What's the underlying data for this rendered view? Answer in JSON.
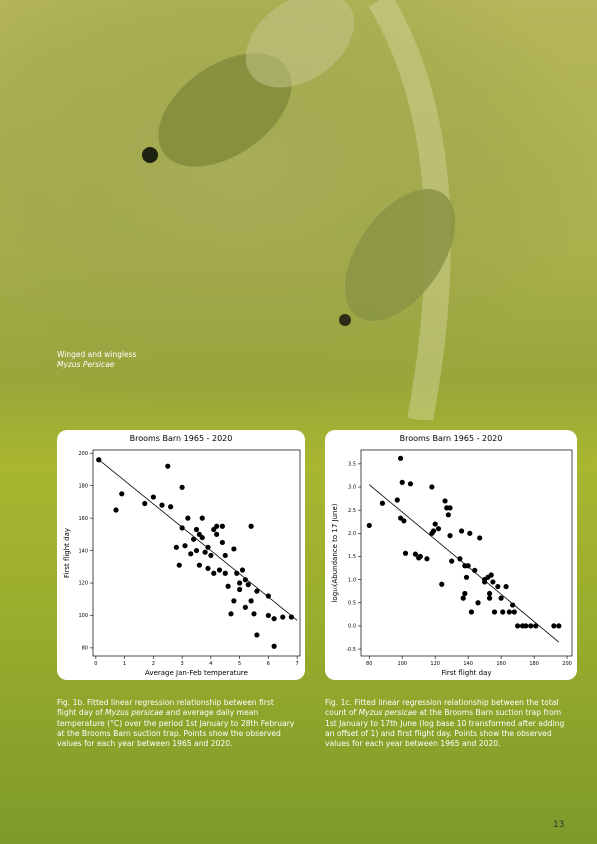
{
  "photo_caption": [
    "Winged and wingless",
    "Myzus Persicae"
  ],
  "chart_data": [
    {
      "type": "scatter",
      "title": "Brooms Barn 1965 - 2020",
      "x_label": "Average Jan-Feb temperature",
      "y_label": "First flight day",
      "color": "#000000",
      "xlim": [
        -0.1,
        7.1
      ],
      "xticks": [
        0,
        1,
        2,
        3,
        4,
        5,
        6,
        7
      ],
      "ylim": [
        75,
        202
      ],
      "yticks": [
        80,
        100,
        120,
        140,
        160,
        180,
        200
      ],
      "x": [
        0.1,
        0.7,
        0.9,
        1.7,
        2.0,
        2.3,
        2.5,
        2.6,
        2.8,
        2.9,
        3.0,
        3.0,
        3.1,
        3.2,
        3.3,
        3.4,
        3.5,
        3.5,
        3.6,
        3.6,
        3.7,
        3.7,
        3.8,
        3.9,
        3.9,
        4.0,
        4.1,
        4.1,
        4.2,
        4.2,
        4.3,
        4.4,
        4.4,
        4.5,
        4.5,
        4.6,
        4.7,
        4.8,
        4.8,
        4.9,
        5.0,
        5.0,
        5.1,
        5.2,
        5.2,
        5.3,
        5.4,
        5.4,
        5.5,
        5.6,
        5.6,
        6.0,
        6.0,
        6.2,
        6.2,
        6.5,
        6.8
      ],
      "y": [
        196,
        165,
        175,
        169,
        173,
        168,
        192,
        167,
        142,
        131,
        179,
        154,
        143,
        160,
        138,
        147,
        153,
        140,
        131,
        150,
        160,
        148,
        139,
        142,
        129,
        137,
        153,
        126,
        150,
        155,
        128,
        155,
        145,
        137,
        126,
        118,
        101,
        141,
        109,
        126,
        120,
        116,
        128,
        122,
        105,
        119,
        155,
        109,
        101,
        115,
        88,
        100,
        112,
        98,
        81,
        99,
        99
      ],
      "fit": {
        "x": [
          0.1,
          7.0
        ],
        "y": [
          196,
          97
        ]
      }
    },
    {
      "type": "scatter",
      "title": "Brooms Barn 1965 - 2020",
      "x_label": "First flight day",
      "y_label": "log₁₀(Abundance to 17 June)",
      "color": "#000000",
      "xlim": [
        75,
        203
      ],
      "xticks": [
        80,
        100,
        120,
        140,
        160,
        180,
        200
      ],
      "ylim": [
        -0.65,
        3.8
      ],
      "yticks": [
        -0.5,
        {
          "value": 0,
          "label": "0.0"
        },
        0.5,
        {
          "value": 1,
          "label": "1.0"
        },
        1.5,
        {
          "value": 2,
          "label": "2.0"
        },
        2.5,
        {
          "value": 3,
          "label": "3.0"
        },
        3.5
      ],
      "x": [
        80,
        88,
        97,
        99,
        100,
        99,
        101,
        102,
        105,
        108,
        110,
        111,
        115,
        118,
        118,
        119,
        120,
        122,
        124,
        126,
        127,
        128,
        129,
        129,
        130,
        135,
        136,
        137,
        138,
        138,
        139,
        140,
        141,
        142,
        144,
        146,
        147,
        150,
        150,
        152,
        153,
        153,
        154,
        155,
        156,
        158,
        160,
        161,
        163,
        165,
        167,
        168,
        170,
        173,
        175,
        178,
        181,
        192,
        195
      ],
      "y": [
        2.17,
        2.65,
        2.72,
        3.62,
        3.1,
        2.33,
        2.27,
        1.57,
        3.07,
        1.55,
        1.47,
        1.5,
        1.45,
        2.0,
        3.0,
        2.05,
        2.2,
        2.1,
        0.9,
        2.7,
        2.55,
        2.4,
        2.55,
        1.95,
        1.4,
        1.45,
        2.05,
        0.6,
        0.7,
        1.3,
        1.05,
        1.3,
        2.0,
        0.3,
        1.2,
        0.5,
        1.9,
        0.95,
        1.0,
        1.05,
        0.6,
        0.7,
        1.1,
        0.95,
        0.3,
        0.85,
        0.6,
        0.3,
        0.85,
        0.3,
        0.45,
        0.3,
        0.0,
        0.0,
        0.0,
        0.0,
        0.0,
        0.0,
        0.0
      ],
      "fit": {
        "x": [
          80,
          195
        ],
        "y": [
          3.05,
          -0.35
        ]
      }
    }
  ],
  "captions": [
    [
      "Fig. 1b. Fitted linear regression relationship between first flight day of ",
      "Myzus persicae",
      " and average daily mean temperature (°C) over the period 1st January to 28th February at the Brooms Barn suction trap. Points show the observed values for each year between 1965 and 2020."
    ],
    [
      "Fig. 1c. Fitted linear regression relationship between the total count of ",
      "Myzus persicae",
      " at the Brooms Barn suction trap from 1st January to 17th June (log base 10 transformed after adding an offset of 1) and first flight day. Points show the observed values for each year between 1965 and 2020."
    ]
  ],
  "page_number": "13"
}
